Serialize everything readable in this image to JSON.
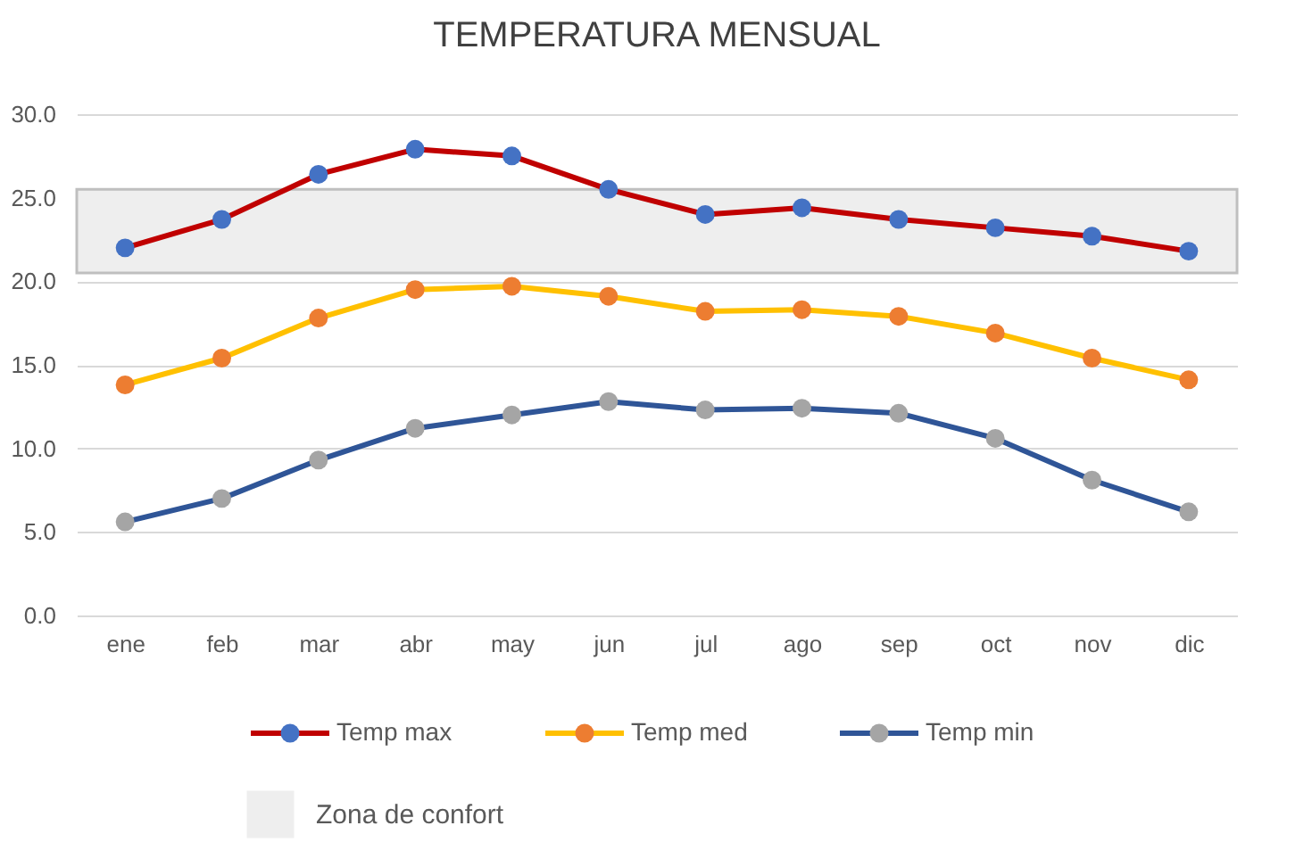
{
  "chart_data": {
    "type": "line",
    "title": "TEMPERATURA MENSUAL",
    "categories": [
      "ene",
      "feb",
      "mar",
      "abr",
      "may",
      "jun",
      "jul",
      "ago",
      "sep",
      "oct",
      "nov",
      "dic"
    ],
    "series": [
      {
        "name": "Temp max",
        "color": "#c00000",
        "colors": [
          "#4472c4",
          "#4472c4",
          "#4472c4",
          "#4472c4",
          "#4472c4",
          "#4472c4",
          "#4472c4",
          "#4472c4",
          "#4472c4",
          "#4472c4",
          "#4472c4",
          "#4472c4"
        ],
        "values": [
          22.0,
          23.7,
          26.4,
          27.9,
          27.5,
          25.5,
          24.0,
          24.4,
          23.7,
          23.2,
          22.7,
          21.8
        ]
      },
      {
        "name": "Temp med",
        "color": "#ffc000",
        "colors": [
          "#ed7d31",
          "#ed7d31",
          "#ed7d31",
          "#ed7d31",
          "#ed7d31",
          "#ed7d31",
          "#ed7d31",
          "#ed7d31",
          "#ed7d31",
          "#ed7d31",
          "#ed7d31",
          "#ed7d31"
        ],
        "values": [
          13.8,
          15.4,
          17.8,
          19.5,
          19.7,
          19.1,
          18.2,
          18.3,
          17.9,
          16.9,
          15.4,
          14.1
        ]
      },
      {
        "name": "Temp min",
        "color": "#2f5597",
        "colors": [
          "#a5a5a5",
          "#a5a5a5",
          "#a5a5a5",
          "#a5a5a5",
          "#a5a5a5",
          "#a5a5a5",
          "#a5a5a5",
          "#a5a5a5",
          "#a5a5a5",
          "#a5a5a5",
          "#a5a5a5",
          "#a5a5a5"
        ],
        "values": [
          5.6,
          7.0,
          9.3,
          11.2,
          12.0,
          12.8,
          12.3,
          12.4,
          12.1,
          10.6,
          8.1,
          6.2
        ]
      }
    ],
    "ylim": [
      0,
      30
    ],
    "yticks": [
      {
        "value": 0,
        "label": "0.0"
      },
      {
        "value": 5,
        "label": "5.0"
      },
      {
        "value": 10,
        "label": "10.0"
      },
      {
        "value": 15,
        "label": "15.0"
      },
      {
        "value": 20,
        "label": "20.0"
      },
      {
        "value": 25,
        "label": "25.0"
      },
      {
        "value": 30,
        "label": "30.0"
      }
    ],
    "bands": [
      {
        "axis": "y",
        "from": 20.5,
        "to": 25.5,
        "label": "Zona de confort",
        "color": "#eeeeee"
      }
    ],
    "grid": "y",
    "legend": "bottom",
    "marker": "circle",
    "line_style": "solid"
  }
}
